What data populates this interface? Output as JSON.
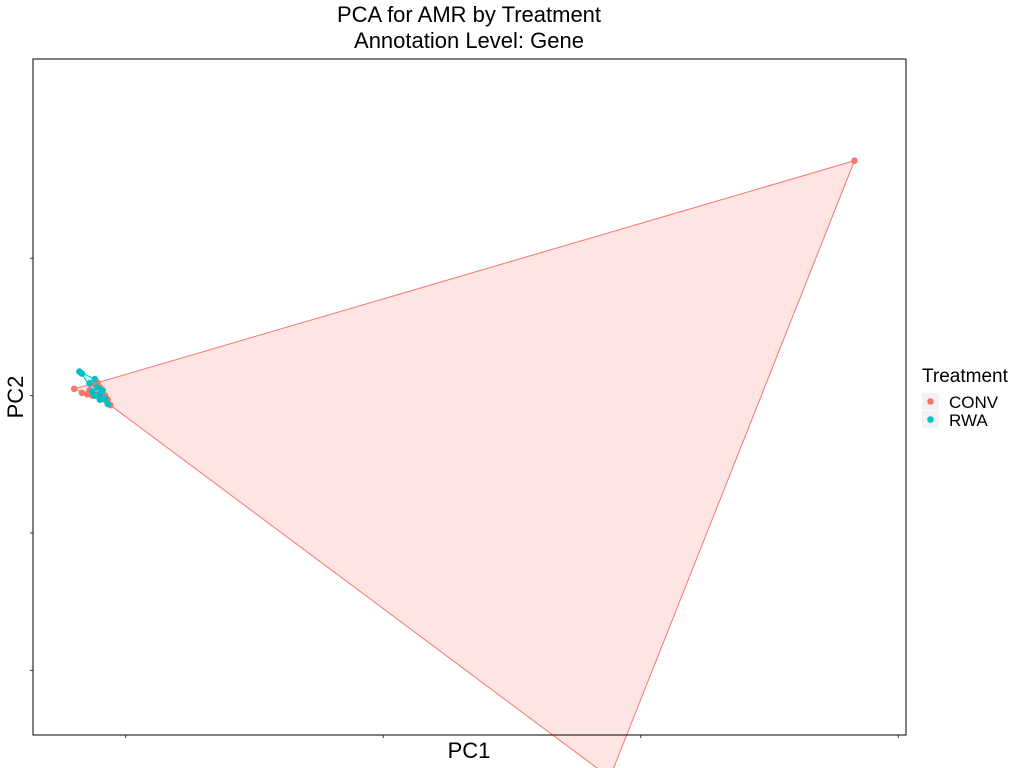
{
  "chart_data": {
    "type": "scatter",
    "title": "PCA for AMR by Treatment",
    "subtitle": "Annotation Level: Gene",
    "xlabel": "PC1",
    "ylabel": "PC2",
    "xlim": [
      -1.6,
      32.3
    ],
    "ylim": [
      -24.7,
      24.5
    ],
    "x_ticks": [
      2,
      12,
      22,
      32
    ],
    "y_ticks": [
      -20,
      -10,
      0,
      10
    ],
    "tick_labels_visible": false,
    "grid": false,
    "hulls": true,
    "legend": {
      "title": "Treatment",
      "position": "right"
    },
    "series": [
      {
        "name": "CONV",
        "color": "#F8766D",
        "points": [
          [
            30.3,
            17.1
          ],
          [
            20.8,
            -27.8
          ],
          [
            0.9,
            0.94
          ],
          [
            0.0,
            0.5
          ],
          [
            0.3,
            0.2
          ],
          [
            0.5,
            0.1
          ],
          [
            0.7,
            0.0
          ],
          [
            0.9,
            0.1
          ],
          [
            1.1,
            0.3
          ],
          [
            0.6,
            0.4
          ],
          [
            1.2,
            0.0
          ],
          [
            1.3,
            -0.3
          ],
          [
            1.4,
            -0.7
          ],
          [
            1.3,
            -0.5
          ],
          [
            1.0,
            0.6
          ],
          [
            0.8,
            0.8
          ]
        ],
        "hull": [
          [
            30.3,
            17.1
          ],
          [
            20.8,
            -27.8
          ],
          [
            1.4,
            -0.7
          ],
          [
            0.0,
            0.5
          ],
          [
            0.9,
            0.94
          ]
        ]
      },
      {
        "name": "RWA",
        "color": "#00BFC4",
        "points": [
          [
            0.2,
            1.75
          ],
          [
            0.3,
            1.6
          ],
          [
            0.8,
            1.2
          ],
          [
            0.6,
            0.9
          ],
          [
            0.9,
            0.6
          ],
          [
            1.1,
            0.4
          ],
          [
            0.7,
            0.3
          ],
          [
            1.0,
            0.1
          ],
          [
            1.2,
            -0.2
          ],
          [
            1.3,
            -0.6
          ],
          [
            0.8,
            0.0
          ],
          [
            1.0,
            -0.3
          ]
        ],
        "hull": [
          [
            0.2,
            1.75
          ],
          [
            0.8,
            1.2
          ],
          [
            1.3,
            -0.6
          ],
          [
            0.8,
            0.0
          ],
          [
            0.3,
            1.6
          ]
        ]
      }
    ]
  }
}
